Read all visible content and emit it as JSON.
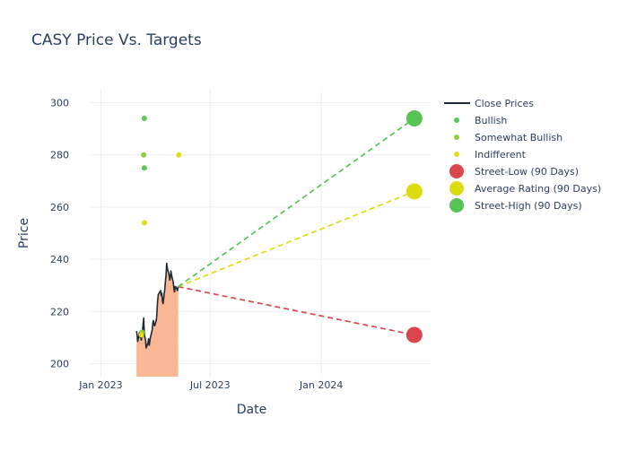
{
  "chart_data": {
    "type": "line",
    "title": "CASY Price Vs. Targets",
    "xlabel": "Date",
    "ylabel": "Price",
    "xlim": [
      "2022-12-15",
      "2024-06-30"
    ],
    "ylim": [
      195,
      305
    ],
    "x_ticks": [
      {
        "date": "2023-01-01",
        "label": "Jan 2023"
      },
      {
        "date": "2023-07-01",
        "label": "Jul 2023"
      },
      {
        "date": "2024-01-01",
        "label": "Jan 2024"
      }
    ],
    "y_ticks": [
      200,
      220,
      240,
      260,
      280,
      300
    ],
    "grid": true,
    "legend_position": "top-right",
    "close_prices": {
      "name": "Close Prices",
      "color": "#1f2a36",
      "fill_color": "#f9b893",
      "points": [
        [
          "2023-03-01",
          212.5
        ],
        [
          "2023-03-02",
          211.0
        ],
        [
          "2023-03-03",
          208.5
        ],
        [
          "2023-03-06",
          212.0
        ],
        [
          "2023-03-07",
          210.0
        ],
        [
          "2023-03-08",
          211.5
        ],
        [
          "2023-03-09",
          209.0
        ],
        [
          "2023-03-10",
          210.5
        ],
        [
          "2023-03-13",
          217.5
        ],
        [
          "2023-03-14",
          211.0
        ],
        [
          "2023-03-15",
          210.0
        ],
        [
          "2023-03-16",
          209.0
        ],
        [
          "2023-03-17",
          206.0
        ],
        [
          "2023-03-20",
          208.0
        ],
        [
          "2023-03-21",
          209.5
        ],
        [
          "2023-03-22",
          207.0
        ],
        [
          "2023-03-23",
          208.5
        ],
        [
          "2023-03-24",
          210.0
        ],
        [
          "2023-03-27",
          213.0
        ],
        [
          "2023-03-28",
          215.5
        ],
        [
          "2023-03-29",
          216.5
        ],
        [
          "2023-03-30",
          215.0
        ],
        [
          "2023-03-31",
          214.5
        ],
        [
          "2023-04-03",
          217.0
        ],
        [
          "2023-04-04",
          220.0
        ],
        [
          "2023-04-05",
          224.0
        ],
        [
          "2023-04-06",
          226.5
        ],
        [
          "2023-04-10",
          228.0
        ],
        [
          "2023-04-11",
          226.0
        ],
        [
          "2023-04-12",
          227.0
        ],
        [
          "2023-04-13",
          224.0
        ],
        [
          "2023-04-14",
          223.0
        ],
        [
          "2023-04-17",
          229.0
        ],
        [
          "2023-04-18",
          232.0
        ],
        [
          "2023-04-19",
          234.0
        ],
        [
          "2023-04-20",
          238.5
        ],
        [
          "2023-04-21",
          236.5
        ],
        [
          "2023-04-24",
          234.0
        ],
        [
          "2023-04-25",
          232.0
        ],
        [
          "2023-04-26",
          233.0
        ],
        [
          "2023-04-27",
          235.5
        ],
        [
          "2023-04-28",
          234.0
        ],
        [
          "2023-05-01",
          231.0
        ],
        [
          "2023-05-02",
          228.5
        ],
        [
          "2023-05-03",
          227.5
        ],
        [
          "2023-05-04",
          229.5
        ],
        [
          "2023-05-05",
          229.5
        ],
        [
          "2023-05-08",
          228.0
        ],
        [
          "2023-05-09",
          229.5
        ]
      ]
    },
    "analyst_ratings": [
      {
        "name": "Bullish",
        "color": "#5ac85a",
        "points": [
          [
            "2023-03-14",
            294
          ],
          [
            "2023-03-14",
            275
          ]
        ]
      },
      {
        "name": "Somewhat Bullish",
        "color": "#8fce38",
        "points": [
          [
            "2023-03-13",
            280
          ],
          [
            "2023-03-10",
            212
          ]
        ]
      },
      {
        "name": "Indifferent",
        "color": "#e0dc18",
        "points": [
          [
            "2023-03-14",
            254
          ],
          [
            "2023-05-10",
            280
          ],
          [
            "2023-03-09",
            211
          ]
        ]
      }
    ],
    "targets": {
      "start_date": "2023-05-09",
      "start_price": 229.5,
      "end_date": "2024-06-03",
      "series": [
        {
          "name": "Street-Low (90 Days)",
          "value": 211,
          "color": "#d9464b"
        },
        {
          "name": "Average Rating (90 Days)",
          "value": 266,
          "color": "#dcdc10"
        },
        {
          "name": "Street-High (90 Days)",
          "value": 294,
          "color": "#55c455"
        }
      ]
    }
  }
}
